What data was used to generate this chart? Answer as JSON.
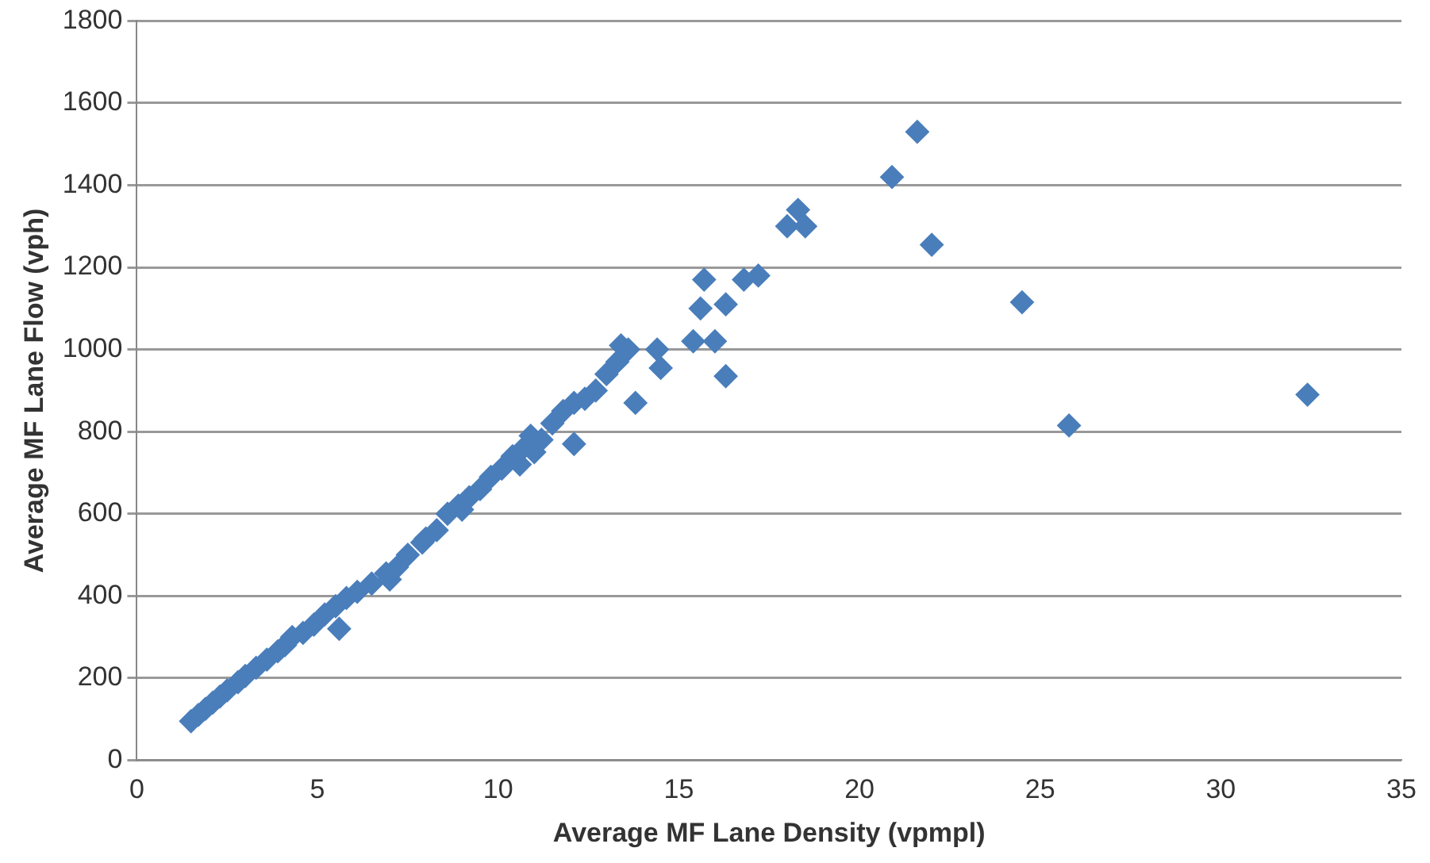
{
  "chart_data": {
    "type": "scatter",
    "xlabel": "Average MF Lane Density (vpmpl)",
    "ylabel": "Average MF Lane Flow (vph)",
    "xlim": [
      0,
      35
    ],
    "xticks": [
      0,
      5,
      10,
      15,
      20,
      25,
      30,
      35
    ],
    "ylim": [
      0,
      1800
    ],
    "yticks": [
      0,
      200,
      400,
      600,
      800,
      1000,
      1200,
      1400,
      1600,
      1800
    ],
    "grid": "y",
    "marker": "diamond",
    "legend": false,
    "series": [
      {
        "color": "#4a7ebb",
        "x": [
          1.5,
          1.7,
          1.9,
          2.1,
          2.3,
          2.5,
          2.8,
          3.0,
          3.3,
          3.6,
          3.9,
          4.1,
          4.3,
          4.6,
          4.9,
          5.2,
          5.5,
          5.6,
          5.8,
          6.1,
          6.5,
          6.9,
          7.0,
          7.2,
          7.5,
          7.9,
          8.0,
          8.3,
          8.6,
          8.9,
          9.0,
          9.2,
          9.5,
          9.8,
          10.1,
          10.4,
          10.6,
          10.7,
          10.9,
          11.0,
          11.2,
          11.5,
          11.8,
          12.1,
          12.1,
          12.4,
          12.7,
          13.0,
          13.3,
          13.4,
          13.6,
          13.8,
          14.4,
          14.5,
          15.4,
          15.6,
          15.7,
          16.0,
          16.3,
          16.3,
          16.8,
          17.2,
          18.0,
          18.3,
          18.5,
          20.9,
          21.6,
          22.0,
          24.5,
          25.8,
          32.4
        ],
        "values": [
          95,
          110,
          125,
          140,
          155,
          170,
          190,
          205,
          225,
          245,
          265,
          280,
          300,
          310,
          330,
          355,
          375,
          320,
          395,
          410,
          430,
          455,
          440,
          470,
          500,
          530,
          540,
          560,
          600,
          620,
          610,
          640,
          660,
          690,
          710,
          740,
          720,
          760,
          790,
          750,
          780,
          820,
          850,
          870,
          770,
          880,
          900,
          940,
          970,
          1010,
          1000,
          870,
          1000,
          955,
          1020,
          1100,
          1170,
          1020,
          1110,
          935,
          1170,
          1180,
          1300,
          1340,
          1300,
          1420,
          1530,
          1255,
          1115,
          815,
          890
        ]
      }
    ]
  }
}
